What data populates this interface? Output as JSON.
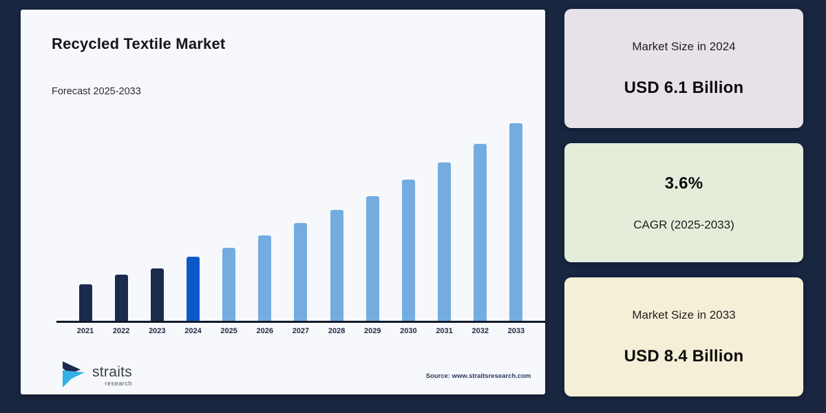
{
  "header": {
    "title": "Recycled Textile Market",
    "subtitle": "Forecast 2025-2033"
  },
  "chart_data": {
    "type": "bar",
    "title": "Recycled Textile Market",
    "subtitle": "Forecast 2025-2033",
    "categories": [
      "2021",
      "2022",
      "2023",
      "2024",
      "2025",
      "2026",
      "2027",
      "2028",
      "2029",
      "2030",
      "2031",
      "2032",
      "2033"
    ],
    "unit": "USD Billion",
    "known_values": {
      "2024": 6.1,
      "2033": 8.4
    },
    "cagr_pct": 3.6,
    "cagr_period": "2025-2033",
    "estimated_values": [
      5.49,
      5.68,
      5.89,
      6.1,
      6.32,
      6.55,
      6.78,
      7.03,
      7.28,
      7.54,
      7.81,
      8.09,
      8.4
    ],
    "bar_heights_pct": [
      18.5,
      23.3,
      26.5,
      32.4,
      37.0,
      43.2,
      49.5,
      56.1,
      63.1,
      71.4,
      80.1,
      89.5,
      100
    ],
    "segments": [
      {
        "name": "historical",
        "years": [
          "2021",
          "2022",
          "2023"
        ],
        "color": "#1b2b4d"
      },
      {
        "name": "base-year",
        "years": [
          "2024"
        ],
        "color": "#0e58c9"
      },
      {
        "name": "forecast",
        "years": [
          "2025",
          "2026",
          "2027",
          "2028",
          "2029",
          "2030",
          "2031",
          "2032",
          "2033"
        ],
        "color": "#74ace0"
      }
    ],
    "y_axis_visible": false,
    "grid": false,
    "legend": "none"
  },
  "stats_panels": [
    {
      "label": "Market Size in 2024",
      "value": "USD 6.1 Billion",
      "bg": "#e7e2ea"
    },
    {
      "label": "CAGR (2025-2033)",
      "value": "3.6%",
      "bg": "#e4edda"
    },
    {
      "label": "Market Size in 2033",
      "value": "USD 8.4 Billion",
      "bg": "#f6efd7"
    }
  ],
  "footer": {
    "logo_text": "straits",
    "logo_subtext": "research",
    "source": "Source: www.straitsresearch.com"
  },
  "colors": {
    "page_background": "#192640",
    "card_background": "#f6f8fc",
    "axis": "#101828",
    "historical_bar": "#1b2b4d",
    "base_year_bar": "#0e58c9",
    "forecast_bar": "#74ace0",
    "logo_dark": "#1b2b4d",
    "logo_light": "#33b0e8"
  }
}
